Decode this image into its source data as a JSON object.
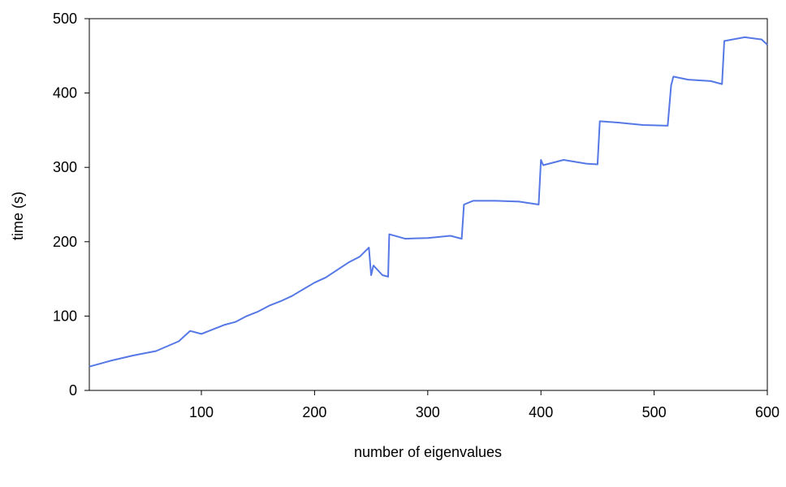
{
  "chart_data": {
    "type": "line",
    "xlabel": "number of eigenvalues",
    "ylabel": "time (s)",
    "xlim": [
      1,
      600
    ],
    "ylim": [
      0,
      500
    ],
    "x_ticks": [
      100,
      200,
      300,
      400,
      500,
      600
    ],
    "y_ticks": [
      0,
      100,
      200,
      300,
      400,
      500
    ],
    "grid": false,
    "legend": "none",
    "series": [
      {
        "color": "#5578e6",
        "x": [
          1,
          20,
          40,
          60,
          80,
          90,
          100,
          110,
          120,
          130,
          140,
          150,
          160,
          170,
          180,
          190,
          200,
          210,
          220,
          230,
          240,
          248,
          250,
          252,
          260,
          265,
          266,
          280,
          300,
          320,
          330,
          332,
          340,
          360,
          380,
          398,
          400,
          402,
          420,
          440,
          450,
          452,
          470,
          490,
          512,
          515,
          517,
          530,
          550,
          560,
          562,
          580,
          595,
          600
        ],
        "y": [
          32,
          40,
          47,
          53,
          66,
          80,
          76,
          82,
          88,
          92,
          100,
          106,
          114,
          120,
          127,
          136,
          145,
          152,
          162,
          172,
          180,
          192,
          155,
          168,
          155,
          153,
          210,
          204,
          205,
          208,
          204,
          250,
          255,
          255,
          254,
          250,
          310,
          303,
          310,
          305,
          304,
          362,
          360,
          357,
          356,
          410,
          422,
          418,
          416,
          412,
          470,
          475,
          472,
          465
        ]
      }
    ]
  }
}
